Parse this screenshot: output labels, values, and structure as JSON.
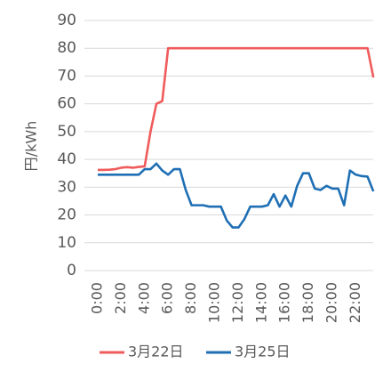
{
  "chart_data": {
    "type": "line",
    "y_label": "円/kWh",
    "categories": [
      "0:00",
      null,
      null,
      null,
      "2:00",
      null,
      null,
      null,
      "4:00",
      null,
      null,
      null,
      "6:00",
      null,
      null,
      null,
      "8:00",
      null,
      null,
      null,
      "10:00",
      null,
      null,
      null,
      "12:00",
      null,
      null,
      null,
      "14:00",
      null,
      null,
      null,
      "16:00",
      null,
      null,
      null,
      "18:00",
      null,
      null,
      null,
      "20:00",
      null,
      null,
      null,
      "22:00",
      null,
      null,
      null
    ],
    "series": [
      {
        "name": "3月22日",
        "color": "#f05b5b",
        "values": [
          36.2,
          36.2,
          36.3,
          36.5,
          37,
          37.2,
          37,
          37.3,
          37.5,
          50,
          60,
          61,
          80,
          80,
          80,
          80,
          80,
          80,
          80,
          80,
          80,
          80,
          80,
          80,
          80,
          80,
          80,
          80,
          80,
          80,
          80,
          80,
          80,
          80,
          80,
          80,
          80,
          80,
          80,
          80,
          80,
          80,
          80,
          80,
          80,
          80,
          80,
          69.5
        ]
      },
      {
        "name": "3月25日",
        "color": "#1f6fb5",
        "values": [
          34.5,
          34.5,
          34.5,
          34.5,
          34.5,
          34.5,
          34.5,
          34.5,
          36.5,
          36.5,
          38.5,
          36,
          34.5,
          36.5,
          36.5,
          29,
          23.5,
          23.5,
          23.5,
          23,
          23,
          23,
          18,
          15.5,
          15.5,
          18.5,
          23,
          23,
          23,
          23.5,
          27.5,
          23,
          27,
          23,
          30.5,
          35,
          35,
          29.5,
          29,
          30.5,
          29.5,
          29.5,
          23.5,
          36,
          34.5,
          34,
          33.8,
          28.5
        ]
      }
    ],
    "ylim": [
      0,
      90
    ],
    "yticks": [
      0,
      10,
      20,
      30,
      40,
      50,
      60,
      70,
      80,
      90
    ],
    "grid": true,
    "legend": "bottom"
  }
}
